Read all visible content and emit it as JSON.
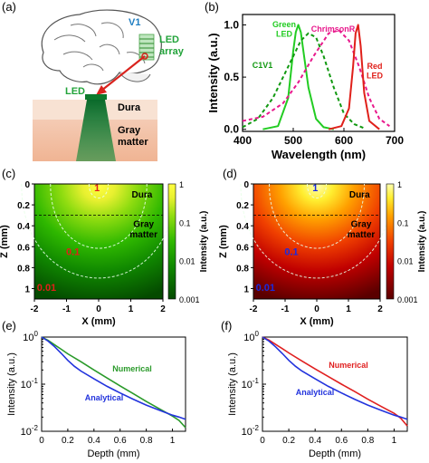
{
  "panel_labels": [
    "(a)",
    "(b)",
    "(c)",
    "(d)",
    "(e)",
    "(f)"
  ],
  "illustration": {
    "v1_label": "V1",
    "led_array_label": "LED\narray",
    "led_label": "LED",
    "dura_label": "Dura",
    "gray_matter_label": "Gray\nmatter"
  },
  "colors": {
    "green": "#22cc22",
    "green_dashed": "#119911",
    "magenta": "#e8198c",
    "red": "#e0201a",
    "blue": "#1a2be0",
    "numerical_green": "#2a9a2a",
    "numerical_red": "#e02020",
    "analytical_blue": "#2233dd"
  },
  "chart_data": [
    {
      "id": "b",
      "type": "line",
      "xlabel": "Wavelength (nm)",
      "ylabel": "Intensity (a.u.)",
      "xlim": [
        400,
        700
      ],
      "ylim": [
        -0.02,
        1.1
      ],
      "xticks": [
        "400",
        "500",
        "600",
        "700"
      ],
      "yticks": [
        "0.0",
        "0.5",
        "1.0"
      ],
      "series": [
        {
          "name": "Green LED",
          "style": "solid",
          "color": "#22cc22",
          "x": [
            440,
            470,
            490,
            500,
            505,
            510,
            515,
            520,
            530,
            545,
            560,
            580
          ],
          "y": [
            0.0,
            0.03,
            0.3,
            0.75,
            0.93,
            1.0,
            0.93,
            0.75,
            0.4,
            0.1,
            0.02,
            0.0
          ]
        },
        {
          "name": "C1V1",
          "style": "dashed",
          "color": "#119911",
          "x": [
            400,
            430,
            460,
            490,
            515,
            530,
            545,
            560,
            580,
            600,
            620,
            640
          ],
          "y": [
            0.02,
            0.1,
            0.3,
            0.6,
            0.85,
            0.92,
            0.88,
            0.7,
            0.4,
            0.15,
            0.05,
            0.01
          ]
        },
        {
          "name": "ChrimsonR",
          "style": "dashed",
          "color": "#e8198c",
          "x": [
            400,
            440,
            480,
            510,
            540,
            570,
            590,
            610,
            630,
            650,
            670,
            690
          ],
          "y": [
            0.08,
            0.12,
            0.25,
            0.45,
            0.7,
            0.92,
            0.95,
            0.85,
            0.6,
            0.3,
            0.1,
            0.03
          ]
        },
        {
          "name": "Red LED",
          "style": "solid",
          "color": "#e0201a",
          "x": [
            570,
            595,
            610,
            618,
            623,
            628,
            633,
            640,
            650,
            670
          ],
          "y": [
            0.0,
            0.03,
            0.2,
            0.6,
            0.92,
            1.0,
            0.8,
            0.35,
            0.08,
            0.0
          ]
        }
      ]
    },
    {
      "id": "c",
      "type": "heatmap",
      "xlabel": "X (mm)",
      "ylabel": "Z (mm)",
      "xlim": [
        -2,
        2
      ],
      "ylim": [
        0,
        1.1
      ],
      "xticks": [
        "-2",
        "-1",
        "0",
        "1",
        "2"
      ],
      "yticks": [
        "0",
        "0.2",
        "0.4",
        "0.6",
        "0.8",
        "1"
      ],
      "colorbar_label": "Intensity (a.u.)",
      "colorbar_ticks": [
        "1",
        "0.1",
        "0.01",
        "0.001"
      ],
      "boundary_labels": [
        "Dura",
        "Gray\nmatter"
      ],
      "contour_labels": [
        "1",
        "0.1",
        "0.01"
      ],
      "label_color": "#e0201a"
    },
    {
      "id": "d",
      "type": "heatmap",
      "xlabel": "X (mm)",
      "ylabel": "Z (mm)",
      "xlim": [
        -2,
        2
      ],
      "ylim": [
        0,
        1.1
      ],
      "xticks": [
        "-2",
        "-1",
        "0",
        "1",
        "2"
      ],
      "yticks": [
        "0",
        "0.2",
        "0.4",
        "0.6",
        "0.8",
        "1"
      ],
      "colorbar_label": "Intensity (a.u.)",
      "colorbar_ticks": [
        "1",
        "0.1",
        "0.01",
        "0.001"
      ],
      "boundary_labels": [
        "Dura",
        "Gray\nmatter"
      ],
      "contour_labels": [
        "1",
        "0.1",
        "0.01"
      ],
      "label_color": "#1a2be0"
    },
    {
      "id": "e",
      "type": "line",
      "xlabel": "Depth (mm)",
      "ylabel": "Intensity (a.u.)",
      "xlim": [
        0,
        1.1
      ],
      "ylim": [
        0.01,
        1
      ],
      "yscale": "log",
      "xticks": [
        "0",
        "0.2",
        "0.4",
        "0.6",
        "0.8",
        "1"
      ],
      "yticks": [
        "10^0",
        "10^-1",
        "10^-2"
      ],
      "series": [
        {
          "name": "Numerical",
          "color": "#2a9a2a",
          "x": [
            0,
            0.05,
            0.1,
            0.15,
            0.2,
            0.3,
            0.4,
            0.5,
            0.6,
            0.7,
            0.8,
            0.9,
            1.0,
            1.05,
            1.1
          ],
          "y": [
            1.0,
            0.85,
            0.68,
            0.55,
            0.44,
            0.3,
            0.2,
            0.135,
            0.092,
            0.063,
            0.043,
            0.03,
            0.021,
            0.017,
            0.012
          ]
        },
        {
          "name": "Analytical",
          "color": "#2233dd",
          "x": [
            0,
            0.05,
            0.1,
            0.15,
            0.2,
            0.25,
            0.3,
            0.4,
            0.5,
            0.6,
            0.7,
            0.8,
            0.9,
            1.0,
            1.05,
            1.1
          ],
          "y": [
            1.0,
            0.82,
            0.62,
            0.45,
            0.32,
            0.24,
            0.19,
            0.13,
            0.09,
            0.065,
            0.048,
            0.036,
            0.028,
            0.022,
            0.02,
            0.018
          ]
        }
      ]
    },
    {
      "id": "f",
      "type": "line",
      "xlabel": "Depth (mm)",
      "ylabel": "Intensity (a.u.)",
      "xlim": [
        0,
        1.1
      ],
      "ylim": [
        0.01,
        1
      ],
      "yscale": "log",
      "xticks": [
        "0",
        "0.2",
        "0.4",
        "0.6",
        "0.8",
        "1"
      ],
      "yticks": [
        "10^0",
        "10^-1",
        "10^-2"
      ],
      "series": [
        {
          "name": "Numerical",
          "color": "#e02020",
          "x": [
            0,
            0.05,
            0.1,
            0.15,
            0.2,
            0.3,
            0.4,
            0.5,
            0.6,
            0.7,
            0.8,
            0.9,
            1.0,
            1.05,
            1.1
          ],
          "y": [
            1.0,
            0.86,
            0.7,
            0.57,
            0.46,
            0.31,
            0.21,
            0.145,
            0.1,
            0.07,
            0.048,
            0.034,
            0.024,
            0.019,
            0.013
          ]
        },
        {
          "name": "Analytical",
          "color": "#2233dd",
          "x": [
            0,
            0.05,
            0.1,
            0.15,
            0.2,
            0.25,
            0.3,
            0.4,
            0.5,
            0.6,
            0.7,
            0.8,
            0.9,
            1.0,
            1.05,
            1.1
          ],
          "y": [
            1.0,
            0.82,
            0.62,
            0.45,
            0.32,
            0.24,
            0.19,
            0.13,
            0.09,
            0.065,
            0.048,
            0.036,
            0.028,
            0.022,
            0.02,
            0.018
          ]
        }
      ]
    }
  ]
}
